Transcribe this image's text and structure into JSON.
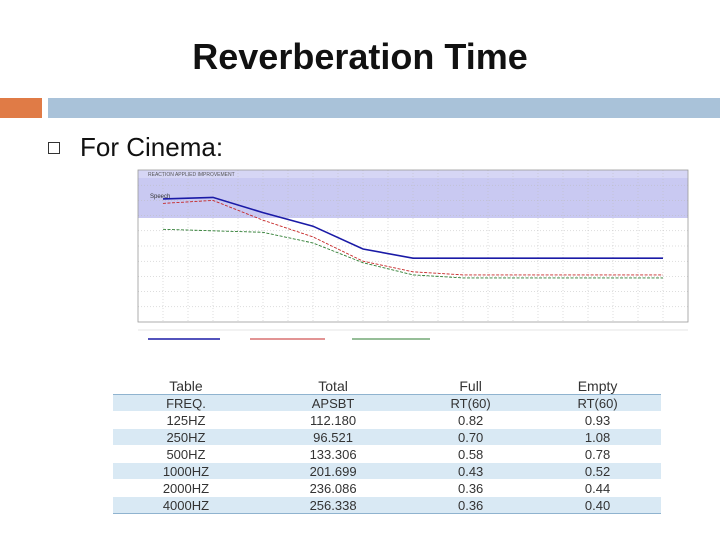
{
  "slide": {
    "title": "Reverberation Time",
    "bullet": "For Cinema:"
  },
  "colors": {
    "accent_orange": "#e07b46",
    "accent_blue": "#a9c2d9",
    "band_speech": "#b7b7ee",
    "series_blue": "#1a1aa6",
    "series_red": "#c62828",
    "series_green": "#2e7d32",
    "table_stripe": "#d9e9f4"
  },
  "chart_data": {
    "type": "line",
    "header_text": "REACTION  APPLIED  IMPROVEMENT",
    "band_label": "Speech",
    "x": [
      1,
      2,
      3,
      4,
      5,
      6,
      7,
      8,
      9,
      10,
      11
    ],
    "series": [
      {
        "name": "",
        "values": [
          810,
          820,
          720,
          630,
          480,
          420,
          420,
          420,
          420,
          420,
          420
        ]
      },
      {
        "name": "",
        "values": [
          780,
          800,
          670,
          560,
          400,
          330,
          310,
          310,
          310,
          310,
          310
        ]
      },
      {
        "name": "",
        "values": [
          610,
          600,
          590,
          520,
          390,
          310,
          290,
          290,
          290,
          290,
          290
        ]
      }
    ]
  },
  "table": {
    "headers": [
      "Table",
      "Total",
      "Full",
      "Empty"
    ],
    "rows": [
      [
        "FREQ.",
        "APSBT",
        "RT(60)",
        "RT(60)"
      ],
      [
        "125HZ",
        "112.180",
        "0.82",
        "0.93"
      ],
      [
        "250HZ",
        "96.521",
        "0.70",
        "1.08"
      ],
      [
        "500HZ",
        "133.306",
        "0.58",
        "0.78"
      ],
      [
        "1000HZ",
        "201.699",
        "0.43",
        "0.52"
      ],
      [
        "2000HZ",
        "236.086",
        "0.36",
        "0.44"
      ],
      [
        "4000HZ",
        "256.338",
        "0.36",
        "0.40"
      ]
    ]
  }
}
